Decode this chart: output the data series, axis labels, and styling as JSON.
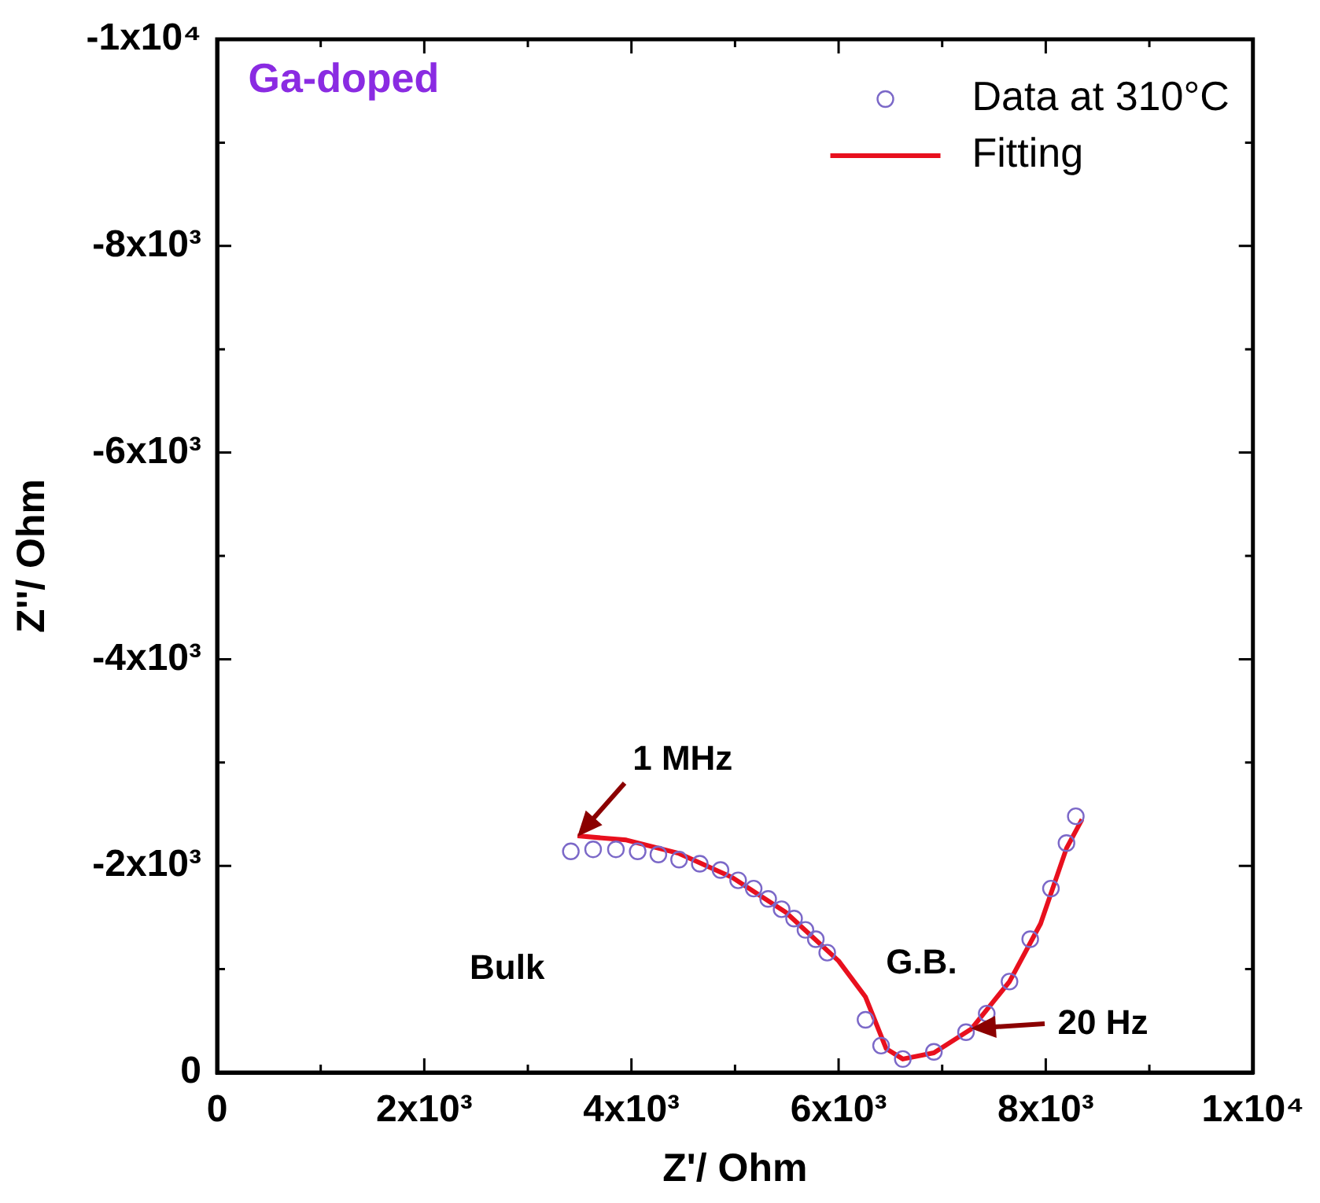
{
  "chart_data": {
    "type": "scatter",
    "xlabel": "Z'/ Ohm",
    "ylabel": "Z''/ Ohm",
    "xlim": [
      0,
      10000
    ],
    "ylim": [
      0,
      -10000
    ],
    "xticks": [
      0,
      {
        "value": 1000,
        "label": null
      },
      {
        "value": 2000,
        "label": "2x10³"
      },
      {
        "value": 3000,
        "label": null
      },
      {
        "value": 4000,
        "label": "4x10³"
      },
      {
        "value": 5000,
        "label": null
      },
      {
        "value": 6000,
        "label": "6x10³"
      },
      {
        "value": 7000,
        "label": null
      },
      {
        "value": 8000,
        "label": "8x10³"
      },
      {
        "value": 9000,
        "label": null
      },
      {
        "value": 10000,
        "label": "1x10⁴"
      }
    ],
    "yticks": [
      0,
      {
        "value": -1000,
        "label": null
      },
      {
        "value": -2000,
        "label": "-2x10³"
      },
      {
        "value": -3000,
        "label": null
      },
      {
        "value": -4000,
        "label": "-4x10³"
      },
      {
        "value": -5000,
        "label": null
      },
      {
        "value": -6000,
        "label": "-6x10³"
      },
      {
        "value": -7000,
        "label": null
      },
      {
        "value": -8000,
        "label": "-8x10³"
      },
      {
        "value": -9000,
        "label": null
      },
      {
        "value": -10000,
        "label": "-1x10⁴"
      }
    ],
    "grid": false,
    "legend": "top right",
    "series": [
      {
        "name": "Data at 310°C",
        "type": "scatter",
        "marker": "circle",
        "color": "#7b68c8",
        "x": [
          3415,
          3630,
          3850,
          4060,
          4260,
          4460,
          4660,
          4860,
          5030,
          5180,
          5320,
          5450,
          5570,
          5680,
          5780,
          5890,
          6260,
          6410,
          6620,
          6920,
          7230,
          7430,
          7650,
          7850,
          8050,
          8200,
          8290
        ],
        "values": [
          -2140,
          -2160,
          -2160,
          -2140,
          -2110,
          -2060,
          -2020,
          -1960,
          -1860,
          -1780,
          -1680,
          -1580,
          -1490,
          -1380,
          -1290,
          -1160,
          -510,
          -260,
          -130,
          -200,
          -390,
          -570,
          -880,
          -1290,
          -1780,
          -2220,
          -2480
        ]
      },
      {
        "name": "Fitting",
        "type": "line",
        "marker": "none",
        "line_style": "solid",
        "color": "#e8101e",
        "x": [
          3480,
          3950,
          4460,
          4970,
          5490,
          6000,
          6260,
          6460,
          6620,
          6920,
          7280,
          7650,
          7950,
          8200,
          8350
        ],
        "values": [
          -2290,
          -2250,
          -2120,
          -1890,
          -1550,
          -1080,
          -730,
          -230,
          -130,
          -190,
          -420,
          -880,
          -1440,
          -2170,
          -2450
        ]
      }
    ],
    "annotations": [
      "Ga-doped",
      {
        "text": "1 MHz",
        "x": 3480,
        "y": -2290
      },
      {
        "text": "20 Hz",
        "x": 7280,
        "y": -420
      },
      "Bulk",
      "G.B."
    ]
  }
}
